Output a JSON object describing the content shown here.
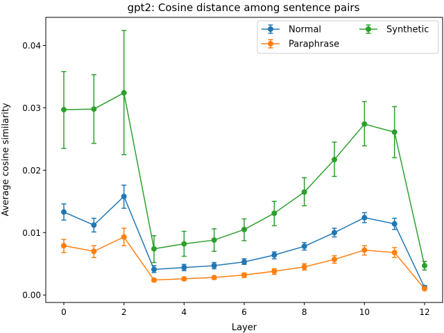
{
  "chart_data": {
    "type": "line",
    "title": "gpt2: Cosine distance among sentence pairs",
    "xlabel": "Layer",
    "ylabel": "Average cosine similarity",
    "xlim": [
      -0.6,
      12.6
    ],
    "ylim": [
      -0.0012,
      0.0445
    ],
    "xticks": [
      0,
      2,
      4,
      6,
      8,
      10,
      12
    ],
    "yticks": [
      0.0,
      0.01,
      0.02,
      0.03,
      0.04
    ],
    "ytick_labels": [
      "0.00",
      "0.01",
      "0.02",
      "0.03",
      "0.04"
    ],
    "grid": false,
    "legend": "upper right, two columns",
    "x": [
      0,
      1,
      2,
      3,
      4,
      5,
      6,
      7,
      8,
      9,
      10,
      11,
      12
    ],
    "series": [
      {
        "name": "Normal",
        "color": "#1f77b4",
        "values": [
          0.0133,
          0.0112,
          0.0158,
          0.0041,
          0.0044,
          0.0047,
          0.0053,
          0.0064,
          0.0078,
          0.01,
          0.0124,
          0.0114,
          0.0012
        ],
        "err_low": [
          0.012,
          0.0101,
          0.0139,
          0.0036,
          0.0039,
          0.0042,
          0.0049,
          0.0058,
          0.0072,
          0.0093,
          0.0116,
          0.0105,
          0.0009
        ],
        "err_high": [
          0.0146,
          0.0123,
          0.0176,
          0.0047,
          0.0049,
          0.0052,
          0.0058,
          0.0069,
          0.0084,
          0.0107,
          0.0132,
          0.0123,
          0.0015
        ]
      },
      {
        "name": "Paraphrase",
        "color": "#ff7f0e",
        "values": [
          0.0079,
          0.007,
          0.0093,
          0.0024,
          0.0026,
          0.0028,
          0.0032,
          0.0038,
          0.0045,
          0.0057,
          0.0072,
          0.0068,
          0.001
        ],
        "err_low": [
          0.0068,
          0.006,
          0.0079,
          0.0021,
          0.0023,
          0.0025,
          0.0028,
          0.0033,
          0.004,
          0.0051,
          0.0064,
          0.006,
          0.0008
        ],
        "err_high": [
          0.0089,
          0.0079,
          0.0107,
          0.0026,
          0.0028,
          0.003,
          0.0035,
          0.0042,
          0.005,
          0.0063,
          0.0079,
          0.0076,
          0.0012
        ]
      },
      {
        "name": "Synthetic",
        "color": "#2ca02c",
        "values": [
          0.0297,
          0.0298,
          0.0324,
          0.0074,
          0.0082,
          0.0088,
          0.0105,
          0.0131,
          0.0165,
          0.0217,
          0.0274,
          0.0261,
          0.0047
        ],
        "err_low": [
          0.0235,
          0.0243,
          0.0225,
          0.0052,
          0.0062,
          0.007,
          0.0087,
          0.0111,
          0.0143,
          0.019,
          0.0239,
          0.022,
          0.004
        ],
        "err_high": [
          0.0358,
          0.0353,
          0.0424,
          0.0095,
          0.0102,
          0.0106,
          0.0122,
          0.015,
          0.0188,
          0.0245,
          0.031,
          0.0302,
          0.0054
        ]
      }
    ]
  }
}
